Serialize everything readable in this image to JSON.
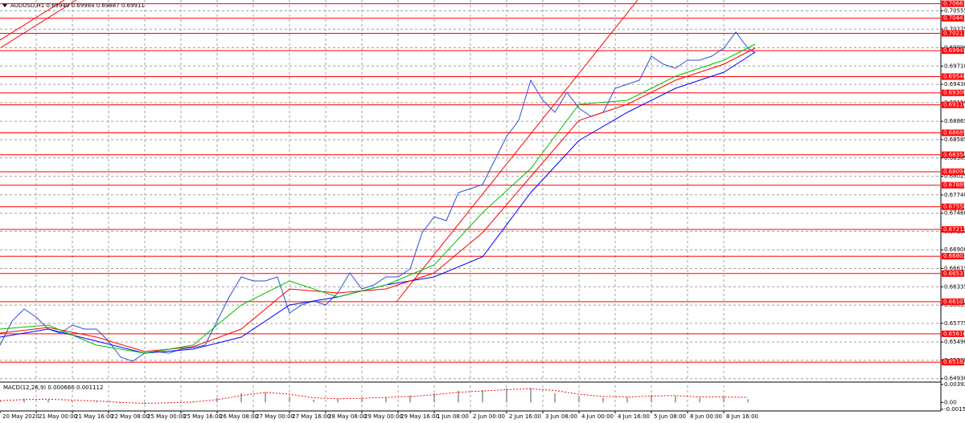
{
  "chart_data": [
    {
      "type": "line",
      "title": "AUDUSD,H1  0.69949 0.69984 0.69887 0.69911",
      "xlim": [
        0,
        390
      ],
      "ylim": [
        0.6489,
        0.7072
      ],
      "grid": true,
      "xticks": [
        {
          "value": 0,
          "label": "20 May 2020"
        },
        {
          "value": 15,
          "label": "21 May 00:00"
        },
        {
          "value": 30,
          "label": "21 May 16:00"
        },
        {
          "value": 45,
          "label": "22 May 08:00"
        },
        {
          "value": 60,
          "label": "25 May 00:00"
        },
        {
          "value": 75,
          "label": "25 May 16:00"
        },
        {
          "value": 90,
          "label": "26 May 08:00"
        },
        {
          "value": 105,
          "label": "27 May 00:00"
        },
        {
          "value": 120,
          "label": "27 May 16:00"
        },
        {
          "value": 135,
          "label": "28 May 08:00"
        },
        {
          "value": 150,
          "label": "29 May 00:00"
        },
        {
          "value": 165,
          "label": "29 May 16:00"
        },
        {
          "value": 180,
          "label": "1 Jun 08:00"
        },
        {
          "value": 195,
          "label": "2 Jun 00:00"
        },
        {
          "value": 210,
          "label": "2 Jun 16:00"
        },
        {
          "value": 225,
          "label": "3 Jun 08:00"
        },
        {
          "value": 240,
          "label": "4 Jun 00:00"
        },
        {
          "value": 255,
          "label": "4 Jun 16:00"
        },
        {
          "value": 270,
          "label": "5 Jun 08:00"
        },
        {
          "value": 285,
          "label": "8 Jun 00:00"
        },
        {
          "value": 300,
          "label": "8 Jun 16:00"
        }
      ],
      "yticks": [
        0.70555,
        0.70275,
        {
          "value": 0.6999,
          "label": "0.69990"
        },
        {
          "value": 0.6971,
          "label": "0.69710"
        },
        {
          "value": 0.6943,
          "label": "0.69430"
        },
        {
          "value": 0.6915,
          "label": "0.69150"
        },
        0.68865,
        0.68585,
        0.68305,
        0.68025,
        {
          "value": 0.6774,
          "label": "0.67740"
        },
        {
          "value": 0.6746,
          "label": "0.67460"
        },
        {
          "value": 0.6718,
          "label": "0.67180"
        },
        {
          "value": 0.669,
          "label": "0.66900"
        },
        0.66615,
        0.66335,
        0.66055,
        0.65775,
        {
          "value": 0.6549,
          "label": "0.65490"
        },
        {
          "value": 0.6521,
          "label": "0.65210"
        },
        {
          "value": 0.6493,
          "label": "0.64930"
        }
      ],
      "levels": [
        0.70663,
        0.70441,
        0.70211,
        0.69945,
        0.69548,
        {
          "value": 0.693,
          "label": "0.69300"
        },
        0.69116,
        0.68689,
        0.68354,
        0.68094,
        0.67888,
        0.67558,
        0.67212,
        0.66802,
        0.66537,
        0.66107,
        0.65616,
        0.65182
      ],
      "series": [
        {
          "color": "#2b4fd6",
          "x": [
            0,
            5,
            10,
            15,
            20,
            25,
            30,
            35,
            40,
            45,
            50,
            55,
            60,
            65,
            70,
            75,
            80,
            85,
            90,
            95,
            100,
            105,
            110,
            115,
            120,
            125,
            130,
            135,
            140,
            145,
            150,
            155,
            160,
            165,
            170,
            175,
            180,
            185,
            190,
            195,
            200,
            205,
            210,
            215,
            220,
            225,
            230,
            235,
            240,
            245,
            250,
            255,
            260,
            265,
            270,
            275,
            280,
            285,
            290,
            295,
            300,
            305,
            310,
            313
          ],
          "values": [
            0.65442,
            0.6581,
            0.65995,
            0.65872,
            0.65688,
            0.65626,
            0.65749,
            0.65688,
            0.65688,
            0.65504,
            0.65258,
            0.65197,
            0.65319,
            0.65344,
            0.65319,
            0.65381,
            0.65405,
            0.65442,
            0.6581,
            0.66179,
            0.66485,
            0.66424,
            0.66424,
            0.66485,
            0.65933,
            0.66056,
            0.66117,
            0.66056,
            0.6624,
            0.66547,
            0.66301,
            0.66363,
            0.66485,
            0.66485,
            0.66608,
            0.67161,
            0.67406,
            0.67345,
            0.67774,
            0.67836,
            0.67897,
            0.68265,
            0.68633,
            0.68879,
            0.69493,
            0.69186,
            0.69002,
            0.69308,
            0.69063,
            0.6894,
            0.69002,
            0.6937,
            0.69431,
            0.69493,
            0.69861,
            0.69738,
            0.69677,
            0.69799,
            0.69799,
            0.69861,
            0.69984,
            0.70229,
            0.69984,
            0.69911
          ]
        },
        {
          "color": "#0000ff",
          "x": [
            0,
            20,
            40,
            60,
            80,
            100,
            120,
            140,
            160,
            180,
            200,
            220,
            240,
            260,
            280,
            300,
            313
          ],
          "values": [
            0.65565,
            0.65688,
            0.65504,
            0.65319,
            0.65381,
            0.65565,
            0.66056,
            0.66179,
            0.66363,
            0.66485,
            0.66792,
            0.67774,
            0.68572,
            0.69002,
            0.6937,
            0.69615,
            0.69922
          ]
        },
        {
          "color": "#ff0000",
          "x": [
            0,
            20,
            40,
            60,
            80,
            100,
            120,
            140,
            160,
            180,
            200,
            220,
            240,
            260,
            280,
            300,
            313
          ],
          "values": [
            0.65626,
            0.65712,
            0.65565,
            0.65344,
            0.65418,
            0.65688,
            0.66301,
            0.6624,
            0.66301,
            0.66547,
            0.67161,
            0.6802,
            0.68879,
            0.69124,
            0.69493,
            0.69738,
            0.69984
          ]
        },
        {
          "color": "#00c000",
          "x": [
            0,
            20,
            40,
            60,
            80,
            100,
            120,
            140,
            160,
            180,
            200,
            220,
            240,
            260,
            280,
            300,
            313
          ],
          "values": [
            0.65688,
            0.65749,
            0.65442,
            0.65319,
            0.65442,
            0.66056,
            0.66424,
            0.66179,
            0.66363,
            0.6667,
            0.67467,
            0.68142,
            0.69124,
            0.69186,
            0.69554,
            0.69799,
            0.70045
          ]
        }
      ]
    },
    {
      "type": "bar",
      "title": "MACD(12,26,9) 0.000660 0.001112",
      "xlim": [
        0,
        390
      ],
      "ylim": [
        -0.0017,
        0.0041
      ],
      "yticks": [
        0.003922,
        {
          "value": 0,
          "label": "0.00"
        },
        -0.00151
      ],
      "color": "#a8a8a8",
      "x": [
        0,
        10,
        20,
        30,
        40,
        50,
        60,
        70,
        80,
        90,
        100,
        110,
        120,
        130,
        140,
        150,
        160,
        170,
        180,
        190,
        200,
        210,
        220,
        230,
        240,
        250,
        260,
        270,
        280,
        290,
        300,
        310
      ],
      "values": [
        0.0005,
        0.0008,
        0.0006,
        0.0003,
        0.0002,
        -0.0002,
        -0.0003,
        0.0,
        0.0002,
        0.001,
        0.002,
        0.0022,
        0.0012,
        0.0006,
        0.0008,
        0.001,
        0.0012,
        0.0015,
        0.002,
        0.0025,
        0.0027,
        0.003,
        0.0032,
        0.002,
        0.0012,
        0.001,
        0.0012,
        0.0016,
        0.0014,
        0.001,
        0.0012,
        0.0007
      ],
      "series": [
        {
          "color": "#ff0000",
          "values": [
            0.0004,
            0.0006,
            0.0007,
            0.0005,
            0.0003,
            0.0,
            -0.0002,
            -0.0001,
            0.0001,
            0.0006,
            0.0015,
            0.0022,
            0.0018,
            0.001,
            0.0008,
            0.0009,
            0.0011,
            0.0013,
            0.0017,
            0.0022,
            0.0025,
            0.0028,
            0.003,
            0.0026,
            0.0018,
            0.0013,
            0.0012,
            0.0014,
            0.0015,
            0.0012,
            0.0012,
            0.0011
          ]
        }
      ]
    }
  ]
}
